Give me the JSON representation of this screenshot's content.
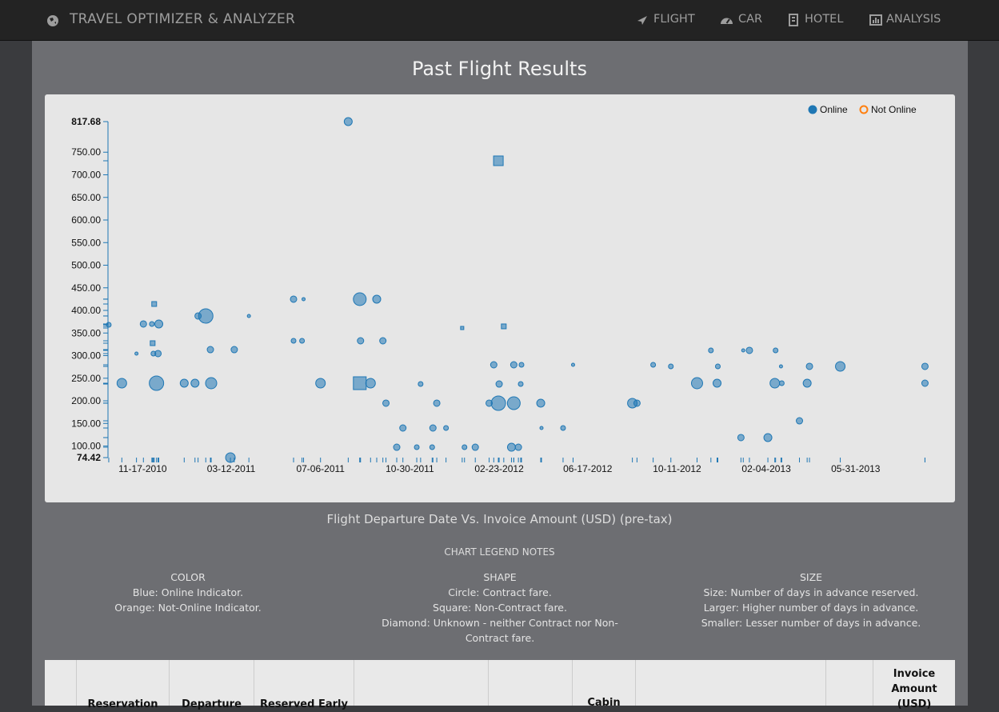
{
  "nav": {
    "brand": "TRAVEL OPTIMIZER & ANALYZER",
    "items": [
      "FLIGHT",
      "CAR",
      "HOTEL",
      "ANALYSIS"
    ]
  },
  "page_title": "Past Flight Results",
  "chart_data": {
    "type": "scatter",
    "caption": "Flight Departure Date Vs. Invoice Amount (USD) (pre-tax)",
    "xlim": [
      "10-03-2010",
      "09-10-2013"
    ],
    "xticks": [
      "11-17-2010",
      "03-12-2011",
      "07-06-2011",
      "10-30-2011",
      "02-23-2012",
      "06-17-2012",
      "10-11-2012",
      "02-04-2013",
      "05-31-2013"
    ],
    "ylim": [
      74.42,
      817.68
    ],
    "yticks": [
      74.42,
      {
        "value": 100,
        "label": "100.00"
      },
      {
        "value": 150,
        "label": "150.00"
      },
      {
        "value": 200,
        "label": "200.00"
      },
      {
        "value": 250,
        "label": "250.00"
      },
      {
        "value": 300,
        "label": "300.00"
      },
      {
        "value": 350,
        "label": "350.00"
      },
      {
        "value": 400,
        "label": "400.00"
      },
      {
        "value": 450,
        "label": "450.00"
      },
      {
        "value": 500,
        "label": "500.00"
      },
      {
        "value": 550,
        "label": "550.00"
      },
      {
        "value": 600,
        "label": "600.00"
      },
      {
        "value": 650,
        "label": "650.00"
      },
      {
        "value": 700,
        "label": "700.00"
      },
      {
        "value": 750,
        "label": "750.00"
      },
      817.68
    ],
    "legend": "top-right",
    "series": [
      {
        "name": "Online",
        "color": "#1f77b4",
        "x": [
          "10-04-2010",
          "10-21-2010",
          "11-09-2010",
          "11-18-2010",
          "11-29-2010",
          "12-08-2010",
          "12-02-2010",
          "11-30-2010",
          "12-01-2010",
          "12-07-2010",
          "12-05-2010",
          "01-10-2011",
          "01-24-2011",
          "01-28-2011",
          "02-07-2011",
          "02-13-2011",
          "02-14-2011",
          "03-11-2011",
          "03-16-2011",
          "04-04-2011",
          "06-01-2011",
          "06-14-2011",
          "06-01-2011",
          "06-12-2011",
          "07-06-2011",
          "08-11-2011",
          "08-26-2011",
          "08-26-2011",
          "09-09-2011",
          "08-27-2011",
          "09-17-2011",
          "09-25-2011",
          "09-29-2011",
          "10-13-2011",
          "10-21-2011",
          "11-08-2011",
          "11-13-2011",
          "11-28-2011",
          "11-29-2011",
          "12-04-2011",
          "12-16-2011",
          "01-06-2012",
          "01-09-2012",
          "01-23-2012",
          "02-10-2012",
          "02-16-2012",
          "02-22-2012",
          "02-23-2012",
          "02-22-2012",
          "02-29-2012",
          "03-10-2012",
          "03-13-2012",
          "03-13-2012",
          "03-19-2012",
          "03-22-2012",
          "03-23-2012",
          "04-17-2012",
          "04-18-2012",
          "05-16-2012",
          "05-29-2012",
          "08-14-2012",
          "08-20-2012",
          "09-10-2012",
          "10-03-2012",
          "11-06-2012",
          "11-24-2012",
          "12-02-2012",
          "12-03-2012",
          "01-02-2013",
          "01-05-2013",
          "01-13-2013",
          "02-06-2013",
          "02-15-2013",
          "02-16-2013",
          "02-24-2013",
          "02-23-2013",
          "03-19-2013",
          "03-29-2013",
          "04-01-2013",
          "05-11-2013",
          "08-29-2013",
          "08-29-2013"
        ],
        "values": [
          368.2,
          239,
          304.5,
          370,
          370,
          370,
          414.2,
          327.5,
          304.5,
          304.5,
          239,
          239,
          239,
          387.7,
          387.7,
          313.3,
          239,
          74.42,
          313.3,
          387.7,
          424.9,
          424.9,
          332.8,
          332.8,
          239,
          817.68,
          424.9,
          239,
          239,
          332.8,
          424.9,
          332.8,
          194.8,
          97.4,
          139.9,
          97.4,
          237.2,
          97.4,
          139.9,
          194.8,
          139.9,
          361.1,
          97.4,
          97.4,
          194.8,
          279.7,
          194.8,
          237.2,
          731,
          364.7,
          97.4,
          279.7,
          194.8,
          97.4,
          237.2,
          279.7,
          194.8,
          139.9,
          139.9,
          279.7,
          194.8,
          194.8,
          279.7,
          276.2,
          239,
          311.6,
          239,
          276.2,
          118.7,
          311.6,
          311.6,
          118.7,
          239,
          311.6,
          239,
          276.2,
          155.8,
          239,
          276.2,
          276.2,
          276.2,
          239
        ],
        "sizes": [
          3,
          6,
          2,
          4,
          3,
          5,
          3,
          3,
          3,
          4,
          9,
          5,
          5,
          4,
          9,
          4,
          7,
          6,
          4,
          2,
          4,
          2,
          3,
          3,
          6,
          5,
          8,
          8,
          6,
          4,
          5,
          4,
          4,
          4,
          4,
          3,
          3,
          3,
          4,
          4,
          3,
          2,
          3,
          4,
          4,
          4,
          9,
          4,
          6,
          3,
          5,
          4,
          8,
          4,
          3,
          3,
          5,
          2,
          3,
          2,
          6,
          4,
          3,
          3,
          7,
          3,
          5,
          3,
          4,
          2,
          4,
          5,
          6,
          3,
          3,
          2,
          4,
          5,
          4,
          6,
          4,
          4
        ],
        "shapes": [
          "circle",
          "circle",
          "circle",
          "circle",
          "circle",
          "circle",
          "square",
          "square",
          "circle",
          "circle",
          "circle",
          "circle",
          "circle",
          "circle",
          "circle",
          "circle",
          "circle",
          "circle",
          "circle",
          "circle",
          "circle",
          "circle",
          "circle",
          "circle",
          "circle",
          "circle",
          "circle",
          "square",
          "circle",
          "circle",
          "circle",
          "circle",
          "circle",
          "circle",
          "circle",
          "circle",
          "circle",
          "circle",
          "circle",
          "circle",
          "circle",
          "square",
          "circle",
          "circle",
          "circle",
          "circle",
          "circle",
          "circle",
          "square",
          "square",
          "circle",
          "circle",
          "circle",
          "circle",
          "circle",
          "circle",
          "circle",
          "circle",
          "circle",
          "circle",
          "circle",
          "circle",
          "circle",
          "circle",
          "circle",
          "circle",
          "circle",
          "circle",
          "circle",
          "circle",
          "circle",
          "circle",
          "circle",
          "circle",
          "circle",
          "circle",
          "circle",
          "circle",
          "circle",
          "circle",
          "circle",
          "circle"
        ]
      },
      {
        "name": "Not Online",
        "color": "#ff7f0e",
        "x": [],
        "values": [],
        "sizes": [],
        "shapes": []
      }
    ]
  },
  "legend_notes": {
    "heading": "CHART LEGEND NOTES",
    "columns": [
      {
        "title": "COLOR",
        "lines": [
          "Blue: Online Indicator.",
          "Orange: Not-Online Indicator."
        ]
      },
      {
        "title": "SHAPE",
        "lines": [
          "Circle: Contract fare.",
          "Square: Non-Contract fare.",
          "Diamond: Unknown - neither Contract nor Non-Contract fare."
        ]
      },
      {
        "title": "SIZE",
        "lines": [
          "Size: Number of days in advance reserved.",
          "Larger: Higher number of days in advance.",
          "Smaller: Lesser number of days in advance."
        ]
      }
    ]
  },
  "table": {
    "headers": [
      "Reservation",
      "Departure",
      "Reserved Early",
      "Cabin",
      "Invoice Amount (USD)"
    ]
  }
}
